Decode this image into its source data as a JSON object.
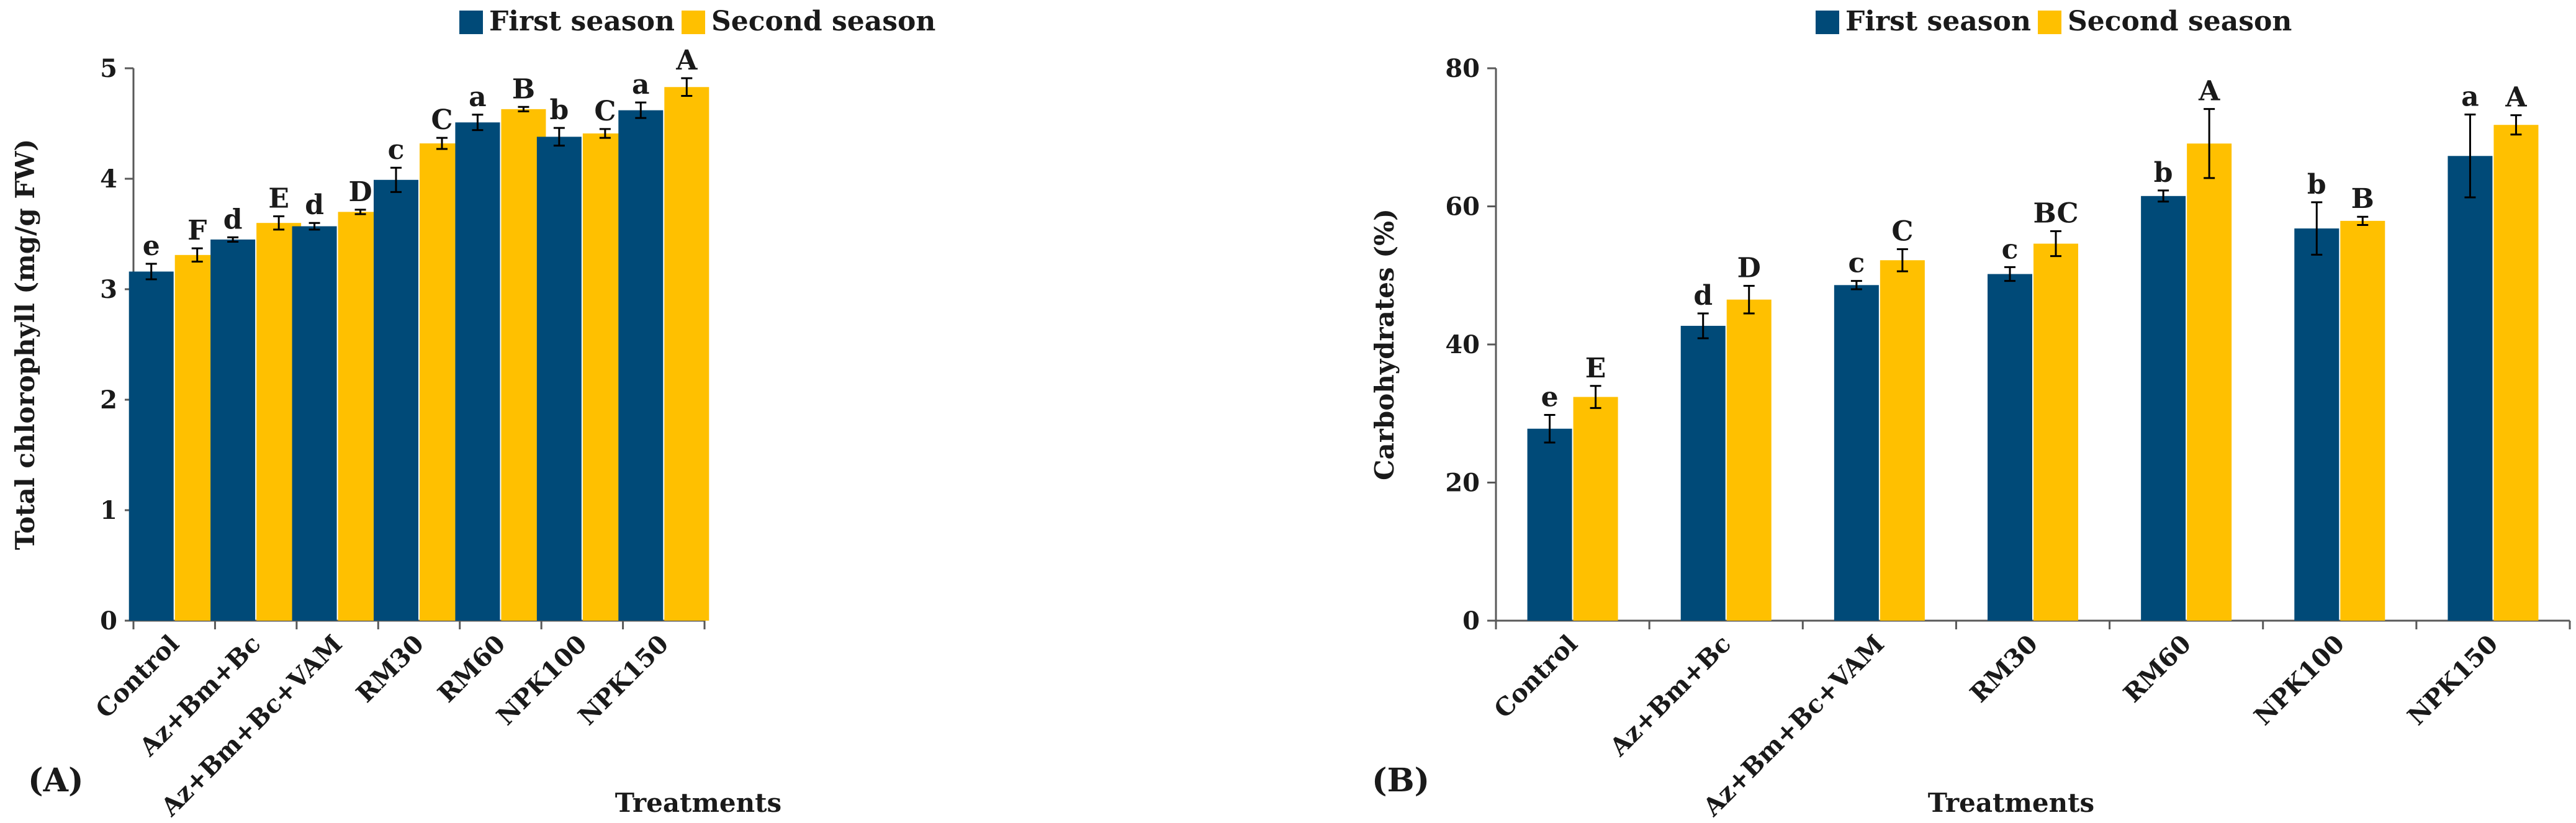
{
  "chart_data": [
    {
      "type": "bar",
      "panel_label": "(A)",
      "categories": [
        "Control",
        "Az+Bm+Bc",
        "Az+Bm+Bc+VAM",
        "RM30",
        "RM60",
        "NPK100",
        "NPK150"
      ],
      "series": [
        {
          "name": "First season",
          "color": "#004a78",
          "values": [
            3.16,
            3.45,
            3.57,
            3.99,
            4.51,
            4.38,
            4.62
          ],
          "errors": [
            0.07,
            0.02,
            0.03,
            0.11,
            0.07,
            0.08,
            0.07
          ],
          "letters": [
            "e",
            "d",
            "d",
            "c",
            "a",
            "b",
            "a"
          ]
        },
        {
          "name": "Second season",
          "color": "#ffc000",
          "values": [
            3.31,
            3.6,
            3.7,
            4.32,
            4.63,
            4.41,
            4.83
          ],
          "errors": [
            0.06,
            0.06,
            0.02,
            0.05,
            0.02,
            0.04,
            0.08
          ],
          "letters": [
            "F",
            "E",
            "D",
            "C",
            "B",
            "C",
            "A"
          ]
        }
      ],
      "ylabel": "Total chlorophyll (mg/g FW)",
      "xlabel": "Treatments",
      "ylim": [
        0,
        5
      ],
      "yticks": [
        "0",
        "1",
        "2",
        "3",
        "4",
        "5"
      ],
      "legend_position": "top-center",
      "grid": false
    },
    {
      "type": "bar",
      "panel_label": "(B)",
      "categories": [
        "Control",
        "Az+Bm+Bc",
        "Az+Bm+Bc+VAM",
        "RM30",
        "RM60",
        "NPK100",
        "NPK150"
      ],
      "series": [
        {
          "name": "First season",
          "color": "#004a78",
          "values": [
            27.8,
            42.7,
            48.6,
            50.2,
            61.5,
            56.8,
            67.3
          ],
          "errors": [
            2.0,
            1.8,
            0.6,
            1.0,
            0.8,
            3.8,
            6.0
          ],
          "letters": [
            "e",
            "d",
            "c",
            "c",
            "b",
            "b",
            "a"
          ]
        },
        {
          "name": "Second season",
          "color": "#ffc000",
          "values": [
            32.4,
            46.5,
            52.2,
            54.6,
            69.1,
            57.9,
            71.8
          ],
          "errors": [
            1.6,
            2.0,
            1.6,
            1.8,
            5.0,
            0.6,
            1.4
          ],
          "letters": [
            "E",
            "D",
            "C",
            "BC",
            "A",
            "B",
            "A"
          ]
        }
      ],
      "ylabel": "Carbohydrates (%)",
      "xlabel": "Treatments",
      "ylim": [
        0,
        80
      ],
      "yticks": [
        "0",
        "20",
        "40",
        "60",
        "80"
      ],
      "legend_position": "top-center",
      "grid": false
    }
  ]
}
